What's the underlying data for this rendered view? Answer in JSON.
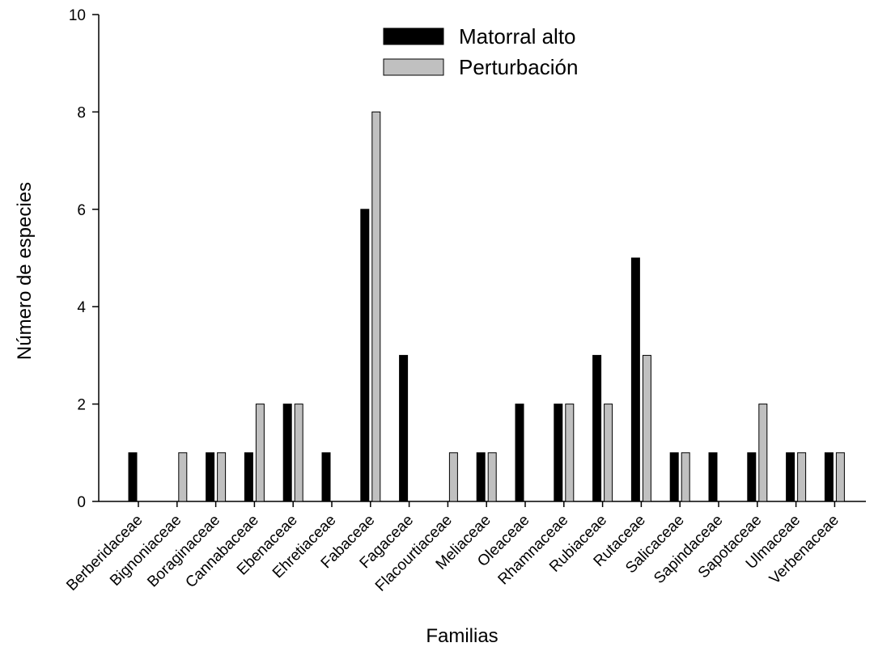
{
  "chart_data": {
    "type": "bar",
    "xlabel": "Familias",
    "ylabel": "Número de especies",
    "ylim": [
      0,
      10
    ],
    "yticks": [
      0,
      2,
      4,
      6,
      8,
      10
    ],
    "grid": false,
    "legend_position": "top-center",
    "categories": [
      "Berberidaceae",
      "Bignoniaceae",
      "Boraginaceae",
      "Cannabaceae",
      "Ebenaceae",
      "Ehretiaceae",
      "Fabaceae",
      "Fagaceae",
      "Flacourtiaceae",
      "Meliaceae",
      "Oleaceae",
      "Rhamnaceae",
      "Rubiaceae",
      "Rutaceae",
      "Salicaceae",
      "Sapindaceae",
      "Sapotaceae",
      "Ulmaceae",
      "Verbenaceae"
    ],
    "series": [
      {
        "name": "Matorral alto",
        "color": "#000000",
        "values": [
          1,
          0,
          1,
          1,
          2,
          1,
          6,
          3,
          0,
          1,
          2,
          2,
          3,
          5,
          1,
          1,
          1,
          1,
          1
        ]
      },
      {
        "name": "Perturbación",
        "color": "#c0c0c0",
        "values": [
          0,
          1,
          1,
          2,
          2,
          0,
          8,
          0,
          1,
          1,
          0,
          2,
          2,
          3,
          1,
          0,
          2,
          1,
          1
        ]
      }
    ]
  }
}
